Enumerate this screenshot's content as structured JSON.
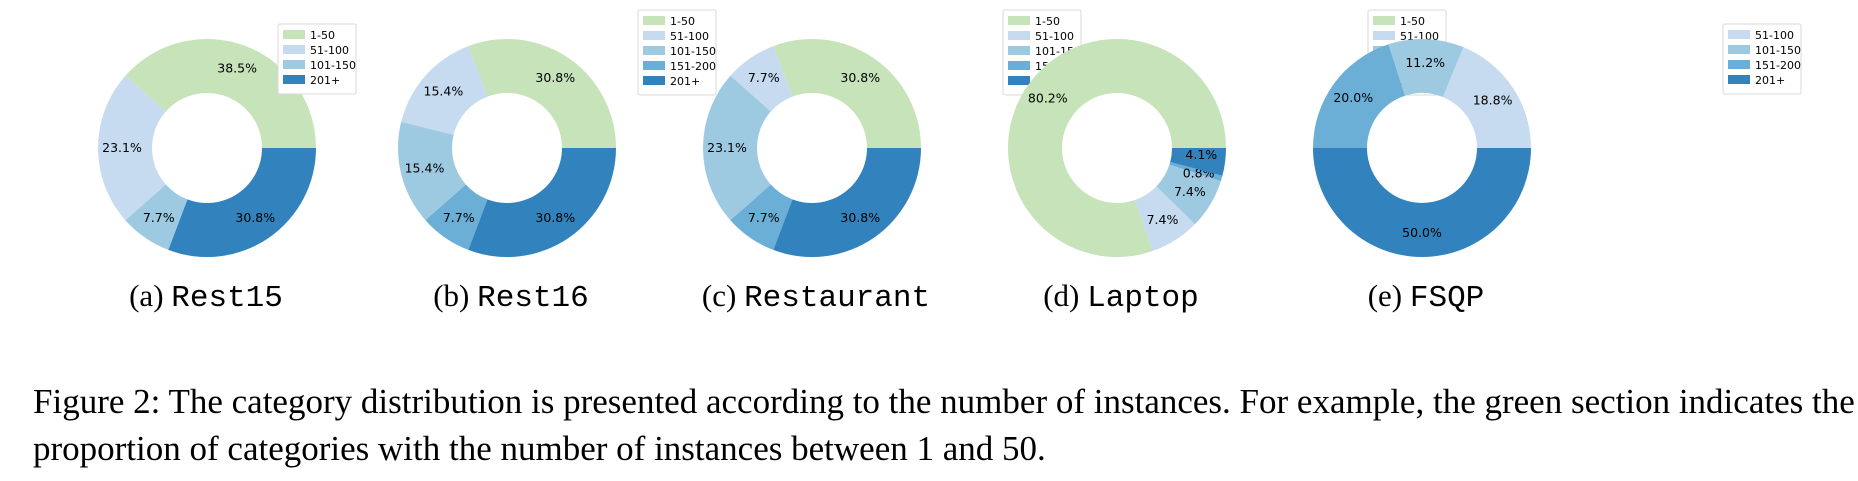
{
  "colors": {
    "1-50": "#c7e3b9",
    "51-100": "#c6dbef",
    "101-150": "#9ecae1",
    "151-200": "#6baed6",
    "201+": "#3182bd"
  },
  "chart_data": [
    {
      "type": "pie",
      "donut": true,
      "caption_prefix": "(a)",
      "caption_name": "Rest15",
      "legend_entries": [
        "1-50",
        "51-100",
        "101-150",
        "201+"
      ],
      "legend_placement": "top-right",
      "slices": [
        {
          "category": "1-50",
          "value": 38.5,
          "label": "38.5%"
        },
        {
          "category": "51-100",
          "value": 23.1,
          "label": "23.1%"
        },
        {
          "category": "101-150",
          "value": 7.7,
          "label": "7.7%"
        },
        {
          "category": "201+",
          "value": 30.8,
          "label": "30.8%"
        }
      ]
    },
    {
      "type": "pie",
      "donut": true,
      "caption_prefix": "(b)",
      "caption_name": "Rest16",
      "legend_entries": [
        "1-50",
        "51-100",
        "101-150",
        "151-200",
        "201+"
      ],
      "legend_placement": "top-right",
      "slices": [
        {
          "category": "1-50",
          "value": 30.8,
          "label": "30.8%"
        },
        {
          "category": "51-100",
          "value": 15.4,
          "label": "15.4%"
        },
        {
          "category": "101-150",
          "value": 15.4,
          "label": "15.4%"
        },
        {
          "category": "151-200",
          "value": 7.7,
          "label": "7.7%"
        },
        {
          "category": "201+",
          "value": 30.8,
          "label": "30.8%"
        }
      ]
    },
    {
      "type": "pie",
      "donut": true,
      "caption_prefix": "(c)",
      "caption_name": "Restaurant",
      "legend_entries": [
        "1-50",
        "51-100",
        "101-150",
        "151-200",
        "201+"
      ],
      "legend_placement": "top-right",
      "slices": [
        {
          "category": "1-50",
          "value": 30.8,
          "label": "30.8%"
        },
        {
          "category": "51-100",
          "value": 7.7,
          "label": "7.7%"
        },
        {
          "category": "101-150",
          "value": 23.1,
          "label": "23.1%"
        },
        {
          "category": "151-200",
          "value": 7.7,
          "label": "7.7%"
        },
        {
          "category": "201+",
          "value": 30.8,
          "label": "30.8%"
        }
      ]
    },
    {
      "type": "pie",
      "donut": true,
      "caption_prefix": "(d)",
      "caption_name": "Laptop",
      "legend_entries": [
        "1-50",
        "51-100",
        "101-150",
        "151-200",
        "201+"
      ],
      "legend_placement": "top-right",
      "slices": [
        {
          "category": "1-50",
          "value": 80.2,
          "label": "80.2%"
        },
        {
          "category": "51-100",
          "value": 7.4,
          "label": "7.4%"
        },
        {
          "category": "101-150",
          "value": 7.4,
          "label": "7.4%"
        },
        {
          "category": "151-200",
          "value": 0.8,
          "label": "0.8%"
        },
        {
          "category": "201+",
          "value": 4.1,
          "label": "4.1%"
        }
      ]
    },
    {
      "type": "pie",
      "donut": true,
      "caption_prefix": "(e)",
      "caption_name": "FSQP",
      "legend_entries": [
        "51-100",
        "101-150",
        "151-200",
        "201+"
      ],
      "legend_placement": "top-right",
      "slices": [
        {
          "category": "51-100",
          "value": 18.8,
          "label": "18.8%"
        },
        {
          "category": "101-150",
          "value": 11.2,
          "label": "11.2%"
        },
        {
          "category": "151-200",
          "value": 20.0,
          "label": "20.0%"
        },
        {
          "category": "201+",
          "value": 50.0,
          "label": "50.0%"
        }
      ]
    }
  ],
  "figure_caption": "Figure 2: The category distribution is presented according to the number of instances. For example, the green section indicates the proportion of categories with the number of instances between 1 and 50."
}
